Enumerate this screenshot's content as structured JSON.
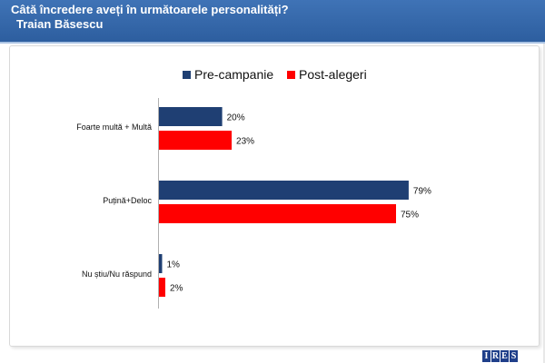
{
  "header": {
    "title": "Câtă încredere aveți în următoarele personalități?",
    "subtitle": "Traian Băsescu"
  },
  "logo": {
    "letters": [
      "I",
      "R",
      "E",
      "S"
    ]
  },
  "chart_data": {
    "type": "bar",
    "orientation": "horizontal",
    "categories": [
      "Foarte multă + Multă",
      "Puțină+Deloc",
      "Nu știu/Nu răspund"
    ],
    "series": [
      {
        "name": "Pre-campanie",
        "color": "#1f3f73",
        "values": [
          20,
          79,
          1
        ],
        "labels": [
          "20%",
          "79%",
          "1%"
        ]
      },
      {
        "name": "Post-alegeri",
        "color": "#ff0000",
        "values": [
          23,
          75,
          2
        ],
        "labels": [
          "23%",
          "75%",
          "2%"
        ]
      }
    ],
    "xlim": [
      0,
      100
    ],
    "legend": "top-center",
    "grid": false
  }
}
